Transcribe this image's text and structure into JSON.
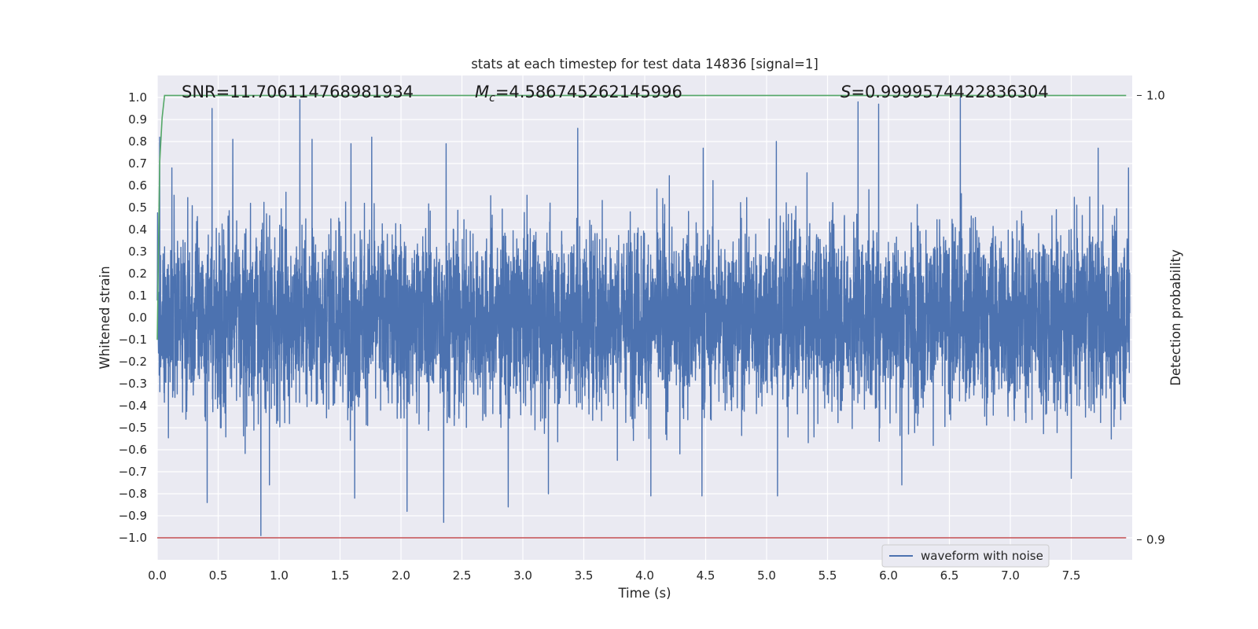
{
  "chart_data": {
    "type": "line",
    "title": "stats at each timestep for test data 14836 [signal=1]",
    "xlabel": "Time (s)",
    "ylabel": "Whitened strain",
    "ylabel_right": "Detection probability",
    "xlim": [
      0.0,
      8.0
    ],
    "ylim": [
      -1.1,
      1.1
    ],
    "ylim_right": [
      0.8955,
      1.0045
    ],
    "x_tick_labels": [
      "0.0",
      "0.5",
      "1.0",
      "1.5",
      "2.0",
      "2.5",
      "3.0",
      "3.5",
      "4.0",
      "4.5",
      "5.0",
      "5.5",
      "6.0",
      "6.5",
      "7.0",
      "7.5"
    ],
    "x_tick_values": [
      0.0,
      0.5,
      1.0,
      1.5,
      2.0,
      2.5,
      3.0,
      3.5,
      4.0,
      4.5,
      5.0,
      5.5,
      6.0,
      6.5,
      7.0,
      7.5
    ],
    "y_tick_labels": [
      "1.0",
      "0.9",
      "0.8",
      "0.7",
      "0.6",
      "0.5",
      "0.4",
      "0.3",
      "0.2",
      "0.1",
      "0.0",
      "−0.1",
      "−0.2",
      "−0.3",
      "−0.4",
      "−0.5",
      "−0.6",
      "−0.7",
      "−0.8",
      "−0.9",
      "−1.0"
    ],
    "y_tick_values": [
      1.0,
      0.9,
      0.8,
      0.7,
      0.6,
      0.5,
      0.4,
      0.3,
      0.2,
      0.1,
      0.0,
      -0.1,
      -0.2,
      -0.3,
      -0.4,
      -0.5,
      -0.6,
      -0.7,
      -0.8,
      -0.9,
      -1.0
    ],
    "y_right_tick_labels": [
      "1.0",
      "0.9"
    ],
    "y_right_tick_values": [
      1.0,
      0.9
    ],
    "grid": true,
    "legend_position": "lower-right",
    "series": [
      {
        "name": "waveform with noise",
        "color": "#4c72b0",
        "axis": "left",
        "kind": "noise",
        "x_range": [
          0.0,
          7.98
        ],
        "typical_envelope": [
          -0.45,
          0.45
        ],
        "peaks": [
          {
            "x": 0.02,
            "y": 0.82
          },
          {
            "x": 0.12,
            "y": 0.68
          },
          {
            "x": 0.45,
            "y": 0.95
          },
          {
            "x": 0.62,
            "y": 0.81
          },
          {
            "x": 1.17,
            "y": 0.99
          },
          {
            "x": 1.27,
            "y": 0.81
          },
          {
            "x": 1.59,
            "y": 0.79
          },
          {
            "x": 1.76,
            "y": 0.82
          },
          {
            "x": 2.37,
            "y": 0.79
          },
          {
            "x": 3.45,
            "y": 0.86
          },
          {
            "x": 4.48,
            "y": 0.77
          },
          {
            "x": 5.08,
            "y": 0.8
          },
          {
            "x": 5.75,
            "y": 0.98
          },
          {
            "x": 5.92,
            "y": 0.97
          },
          {
            "x": 6.59,
            "y": 1.0
          },
          {
            "x": 7.72,
            "y": 0.77
          },
          {
            "x": 7.97,
            "y": 0.68
          }
        ],
        "troughs": [
          {
            "x": 0.41,
            "y": -0.84
          },
          {
            "x": 0.85,
            "y": -0.99
          },
          {
            "x": 0.92,
            "y": -0.76
          },
          {
            "x": 1.62,
            "y": -0.82
          },
          {
            "x": 2.05,
            "y": -0.88
          },
          {
            "x": 2.35,
            "y": -0.93
          },
          {
            "x": 2.88,
            "y": -0.86
          },
          {
            "x": 3.21,
            "y": -0.8
          },
          {
            "x": 4.05,
            "y": -0.81
          },
          {
            "x": 4.47,
            "y": -0.81
          },
          {
            "x": 5.09,
            "y": -0.81
          },
          {
            "x": 6.11,
            "y": -0.76
          },
          {
            "x": 7.5,
            "y": -0.73
          }
        ]
      },
      {
        "name": "",
        "color": "#55a868",
        "axis": "right",
        "x": [
          0.0,
          0.02,
          0.04,
          0.06,
          7.95
        ],
        "y": [
          0.945,
          0.985,
          0.995,
          1.0,
          1.0
        ]
      },
      {
        "name": "",
        "color": "#c44e52",
        "axis": "left",
        "x": [
          0.0,
          7.95
        ],
        "y": [
          -1.0,
          -1.0
        ]
      }
    ],
    "annotations": [
      {
        "id": "snr",
        "text": "SNR=11.706114768981934"
      },
      {
        "id": "mc",
        "symbol": "M",
        "subscript": "c",
        "text": "=4.586745262145996"
      },
      {
        "id": "s",
        "symbol": "S",
        "text": "=0.9999574422836304"
      }
    ]
  },
  "colors": {
    "axes_face": "#eaeaf2",
    "grid": "#ffffff",
    "text": "#262626",
    "legend_face": "#eaeaf2",
    "legend_edge": "#cccccc"
  }
}
